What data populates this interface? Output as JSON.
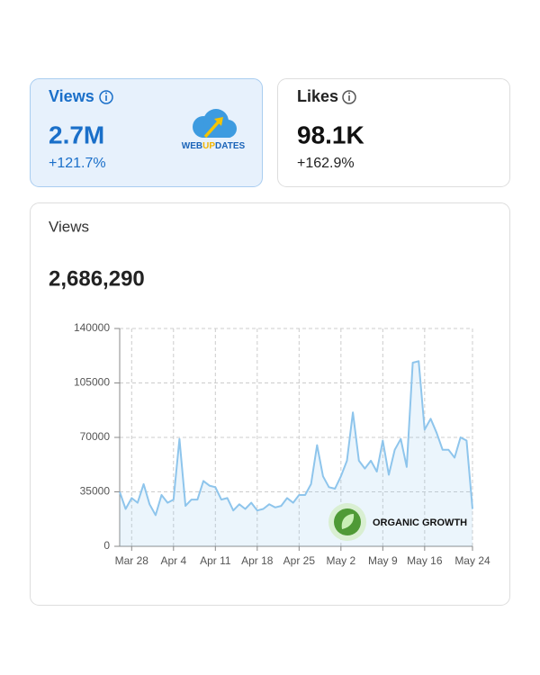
{
  "views_card": {
    "title": "Views",
    "value": "2.7M",
    "change": "+121.7%"
  },
  "likes_card": {
    "title": "Likes",
    "value": "98.1K",
    "change": "+162.9%"
  },
  "logo": [
    "WEB",
    "UP",
    "DATES"
  ],
  "chart_card": {
    "title": "Views",
    "total": "2,686,290"
  },
  "watermark": "ORGANIC GROWTH",
  "chart_data": {
    "type": "line",
    "categories": [
      null,
      null,
      "Mar 28",
      null,
      null,
      null,
      null,
      null,
      null,
      "Apr 4",
      null,
      null,
      null,
      null,
      null,
      null,
      "Apr 11",
      null,
      null,
      null,
      null,
      null,
      null,
      "Apr 18",
      null,
      null,
      null,
      null,
      null,
      null,
      "Apr 25",
      null,
      null,
      null,
      null,
      null,
      null,
      "May 2",
      null,
      null,
      null,
      null,
      null,
      null,
      "May 9",
      null,
      null,
      null,
      null,
      null,
      null,
      "May 16",
      null,
      null,
      null,
      null,
      null,
      null,
      null,
      "May 24"
    ],
    "values": [
      35000,
      24000,
      31000,
      28000,
      40000,
      27000,
      20000,
      33000,
      28000,
      30000,
      69000,
      26000,
      30000,
      30000,
      42000,
      39000,
      38000,
      30000,
      31000,
      23000,
      27000,
      24000,
      28000,
      23000,
      24000,
      27000,
      25000,
      26000,
      31000,
      28000,
      33000,
      33000,
      40000,
      65000,
      45000,
      38000,
      37000,
      45000,
      55000,
      86000,
      55000,
      50000,
      55000,
      48000,
      68000,
      46000,
      62000,
      69000,
      51000,
      118000,
      119000,
      75000,
      82000,
      73000,
      62000,
      62000,
      57000,
      70000,
      68000,
      24000
    ],
    "color": "#8ec5ec",
    "ylim": [
      0,
      140000
    ],
    "yticks": [
      0,
      35000,
      70000,
      105000,
      140000
    ],
    "grid": true
  }
}
